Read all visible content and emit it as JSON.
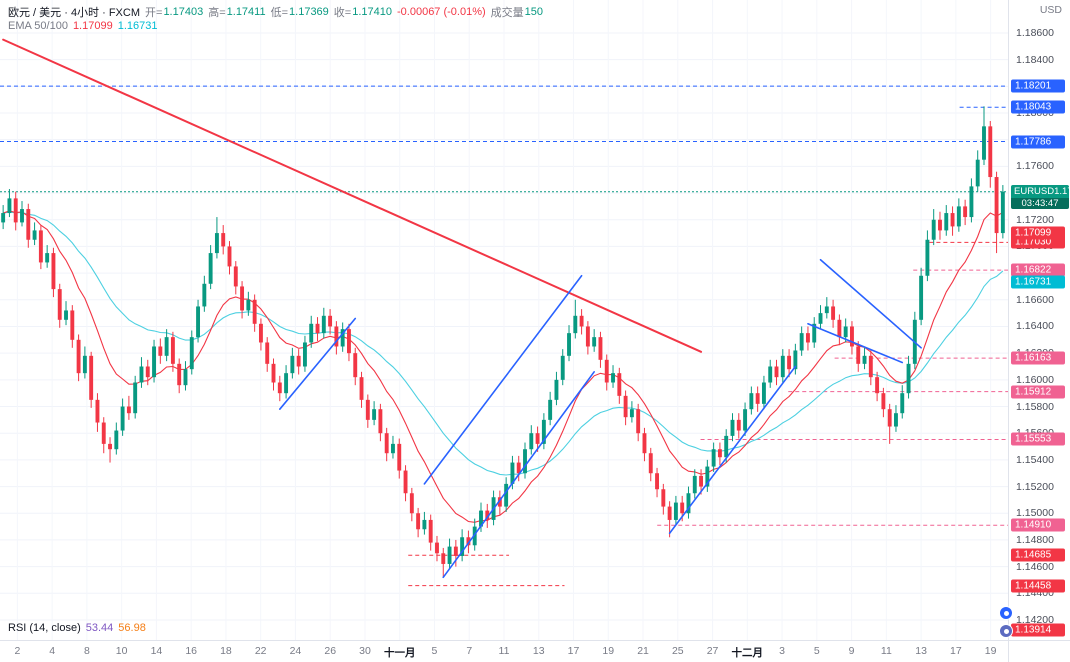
{
  "header": {
    "symbol_title": "欧元 / 美元 · 4小时 · FXCM",
    "ohlc": {
      "o_label": "开=",
      "open": "1.17403",
      "h_label": "高=",
      "high": "1.17411",
      "l_label": "低=",
      "low": "1.17369",
      "c_label": "收=",
      "close": "1.17410",
      "change": "-0.00067 (-0.01%)",
      "volume_label": "成交量",
      "volume": "150"
    },
    "ema_label": "EMA 50/100",
    "ema50": "1.17099",
    "ema100": "1.16731"
  },
  "rsi": {
    "label": "RSI (14, close)",
    "value1": "53.44",
    "value2": "56.98"
  },
  "axis": {
    "currency": "USD",
    "y_ticks": [
      "1.18600",
      "1.18400",
      "1.18200",
      "1.18000",
      "1.17800",
      "1.17600",
      "1.17400",
      "1.17200",
      "1.17000",
      "1.16800",
      "1.16600",
      "1.16400",
      "1.16200",
      "1.16000",
      "1.15800",
      "1.15600",
      "1.15400",
      "1.15200",
      "1.15000",
      "1.14800",
      "1.14600",
      "1.14400",
      "1.14200"
    ],
    "x_labels": [
      "2",
      "4",
      "8",
      "10",
      "14",
      "16",
      "18",
      "22",
      "24",
      "26",
      "30",
      "十一月",
      "5",
      "7",
      "11",
      "13",
      "17",
      "19",
      "21",
      "25",
      "27",
      "十二月",
      "3",
      "5",
      "9",
      "11",
      "13",
      "17",
      "19"
    ],
    "x_month_indices": [
      11,
      21
    ]
  },
  "chart_data": {
    "type": "candlestick",
    "symbol": "EURUSD",
    "timeframe": "4h",
    "title": "欧元 / 美元 · 4小时 · FXCM",
    "ylim": [
      1.1405,
      1.18847
    ],
    "grid": true,
    "up_color": "#089981",
    "down_color": "#f23645",
    "ema_periods": [
      50,
      100
    ],
    "render_periods": [
      12,
      30
    ],
    "ema_colors": [
      "#f23645",
      "#4dd0e1"
    ],
    "last_price": {
      "symbol": "EURUSD",
      "price": 1.1741,
      "price_text": "1.17410",
      "countdown": "03:43:47",
      "color": "#089981"
    },
    "value_badges": [
      {
        "price": 1.17099,
        "text": "1.17099",
        "bg": "#f23645"
      },
      {
        "price": 1.16731,
        "text": "1.16731",
        "bg": "#00bcd4"
      }
    ],
    "levels": [
      {
        "price": 1.18201,
        "text": "1.18201",
        "color": "#2962ff",
        "bg": "#2962ff",
        "dash": "4 3",
        "from": 0
      },
      {
        "price": 1.18043,
        "text": "1.18043",
        "color": "#2962ff",
        "bg": "#2962ff",
        "dash": "4 3",
        "from": 0.952
      },
      {
        "price": 1.17786,
        "text": "1.17786",
        "color": "#2962ff",
        "bg": "#2962ff",
        "dash": "4 3",
        "from": 0
      },
      {
        "price": 1.1703,
        "text": "1.17030",
        "color": "#f23645",
        "bg": "#f23645",
        "dash": "4 3",
        "from": 0.922
      },
      {
        "price": 1.16822,
        "text": "1.16822",
        "color": "#f06292",
        "bg": "#f06292",
        "dash": "4 3",
        "from": 0.906
      },
      {
        "price": 1.16163,
        "text": "1.16163",
        "color": "#f06292",
        "bg": "#f06292",
        "dash": "4 3",
        "from": 0.828
      },
      {
        "price": 1.15912,
        "text": "1.15912",
        "color": "#f06292",
        "bg": "#f06292",
        "dash": "4 3",
        "from": 0.782
      },
      {
        "price": 1.15553,
        "text": "1.15553",
        "color": "#f06292",
        "bg": "#f06292",
        "dash": "4 3",
        "from": 0.695
      },
      {
        "price": 1.1491,
        "text": "1.14910",
        "color": "#f06292",
        "bg": "#f06292",
        "dash": "4 3",
        "from": 0.652
      },
      {
        "price": 1.14685,
        "text": "1.14685",
        "color": "#f23645",
        "bg": "#f23645",
        "dash": "4 3",
        "from": 0.405,
        "to": 0.505
      },
      {
        "price": 1.14458,
        "text": "1.14458",
        "color": "#f23645",
        "bg": "#f23645",
        "dash": "4 3",
        "from": 0.405,
        "to": 0.56
      },
      {
        "price": 1.13914,
        "text": "1.13914",
        "color": "#f23645",
        "bg": "#f23645",
        "line": false
      }
    ],
    "trendlines": [
      {
        "color": "#f23645",
        "width": 2,
        "points": [
          [
            0,
            1.1855
          ],
          [
            111,
            1.1621
          ]
        ]
      },
      {
        "color": "#2962ff",
        "width": 1.6,
        "points": [
          [
            44,
            1.1578
          ],
          [
            56,
            1.1646
          ]
        ]
      },
      {
        "color": "#2962ff",
        "width": 1.6,
        "points": [
          [
            67,
            1.1522
          ],
          [
            92,
            1.1678
          ]
        ]
      },
      {
        "color": "#2962ff",
        "width": 1.6,
        "points": [
          [
            70,
            1.1452
          ],
          [
            94,
            1.1606
          ]
        ]
      },
      {
        "color": "#2962ff",
        "width": 1.6,
        "points": [
          [
            106,
            1.1485
          ],
          [
            126,
            1.161
          ]
        ]
      },
      {
        "color": "#2962ff",
        "width": 1.6,
        "points": [
          [
            130,
            1.169
          ],
          [
            146,
            1.1624
          ]
        ]
      },
      {
        "color": "#2962ff",
        "width": 1.6,
        "points": [
          [
            128,
            1.1642
          ],
          [
            143,
            1.1613
          ]
        ]
      }
    ],
    "candles": [
      [
        1.1718,
        1.1731,
        1.1713,
        1.1725
      ],
      [
        1.1725,
        1.1743,
        1.1722,
        1.1736
      ],
      [
        1.1736,
        1.1741,
        1.1712,
        1.1718
      ],
      [
        1.1718,
        1.1734,
        1.1715,
        1.1728
      ],
      [
        1.1728,
        1.1732,
        1.1699,
        1.1705
      ],
      [
        1.1705,
        1.1718,
        1.1701,
        1.1712
      ],
      [
        1.1712,
        1.1716,
        1.1683,
        1.1688
      ],
      [
        1.1688,
        1.1701,
        1.1684,
        1.1695
      ],
      [
        1.1695,
        1.1699,
        1.1662,
        1.1668
      ],
      [
        1.1668,
        1.1672,
        1.1639,
        1.1645
      ],
      [
        1.1645,
        1.1659,
        1.1641,
        1.1652
      ],
      [
        1.1652,
        1.1656,
        1.1624,
        1.163
      ],
      [
        1.163,
        1.1634,
        1.1599,
        1.1605
      ],
      [
        1.1605,
        1.1625,
        1.1601,
        1.1618
      ],
      [
        1.1618,
        1.1621,
        1.1579,
        1.1585
      ],
      [
        1.1585,
        1.159,
        1.1561,
        1.1568
      ],
      [
        1.1568,
        1.1572,
        1.1545,
        1.1552
      ],
      [
        1.1552,
        1.1557,
        1.1538,
        1.1548
      ],
      [
        1.1548,
        1.1568,
        1.1544,
        1.1562
      ],
      [
        1.1562,
        1.1586,
        1.1558,
        1.158
      ],
      [
        1.158,
        1.1588,
        1.157,
        1.1575
      ],
      [
        1.1575,
        1.1603,
        1.1571,
        1.1598
      ],
      [
        1.1598,
        1.1617,
        1.1594,
        1.161
      ],
      [
        1.161,
        1.1615,
        1.1596,
        1.1602
      ],
      [
        1.1602,
        1.163,
        1.1598,
        1.1625
      ],
      [
        1.1625,
        1.1631,
        1.1612,
        1.1618
      ],
      [
        1.1618,
        1.1638,
        1.1614,
        1.1632
      ],
      [
        1.1632,
        1.1636,
        1.1606,
        1.1612
      ],
      [
        1.1612,
        1.1616,
        1.159,
        1.1596
      ],
      [
        1.1596,
        1.1614,
        1.1592,
        1.1608
      ],
      [
        1.1608,
        1.1637,
        1.1604,
        1.1632
      ],
      [
        1.1632,
        1.166,
        1.1628,
        1.1655
      ],
      [
        1.1655,
        1.1678,
        1.1651,
        1.1672
      ],
      [
        1.1672,
        1.1701,
        1.1668,
        1.1695
      ],
      [
        1.1695,
        1.1722,
        1.1691,
        1.171
      ],
      [
        1.171,
        1.1716,
        1.1694,
        1.17
      ],
      [
        1.17,
        1.1704,
        1.1679,
        1.1685
      ],
      [
        1.1685,
        1.1689,
        1.1664,
        1.167
      ],
      [
        1.167,
        1.1674,
        1.1646,
        1.1652
      ],
      [
        1.1652,
        1.1666,
        1.1648,
        1.166
      ],
      [
        1.166,
        1.1664,
        1.1636,
        1.1642
      ],
      [
        1.1642,
        1.1646,
        1.1622,
        1.1628
      ],
      [
        1.1628,
        1.1632,
        1.1606,
        1.1612
      ],
      [
        1.1612,
        1.1616,
        1.1592,
        1.1598
      ],
      [
        1.1598,
        1.1603,
        1.1584,
        1.159
      ],
      [
        1.159,
        1.1611,
        1.1586,
        1.1605
      ],
      [
        1.1605,
        1.1624,
        1.1601,
        1.1618
      ],
      [
        1.1618,
        1.1623,
        1.1604,
        1.161
      ],
      [
        1.161,
        1.1633,
        1.1606,
        1.1628
      ],
      [
        1.1628,
        1.1648,
        1.1624,
        1.1642
      ],
      [
        1.1642,
        1.1647,
        1.1629,
        1.1635
      ],
      [
        1.1635,
        1.1654,
        1.1631,
        1.1648
      ],
      [
        1.1648,
        1.1653,
        1.1634,
        1.164
      ],
      [
        1.164,
        1.1644,
        1.1619,
        1.1625
      ],
      [
        1.1625,
        1.1643,
        1.1621,
        1.1638
      ],
      [
        1.1638,
        1.1642,
        1.1614,
        1.162
      ],
      [
        1.162,
        1.1624,
        1.1596,
        1.1602
      ],
      [
        1.1602,
        1.1606,
        1.1579,
        1.1585
      ],
      [
        1.1585,
        1.1589,
        1.1564,
        1.157
      ],
      [
        1.157,
        1.1584,
        1.1566,
        1.1578
      ],
      [
        1.1578,
        1.1582,
        1.1554,
        1.156
      ],
      [
        1.156,
        1.1564,
        1.1539,
        1.1545
      ],
      [
        1.1545,
        1.1558,
        1.1541,
        1.1552
      ],
      [
        1.1552,
        1.1556,
        1.1526,
        1.1532
      ],
      [
        1.1532,
        1.1536,
        1.1509,
        1.1515
      ],
      [
        1.1515,
        1.1519,
        1.1494,
        1.15
      ],
      [
        1.15,
        1.1504,
        1.1482,
        1.1488
      ],
      [
        1.1488,
        1.1501,
        1.1484,
        1.1495
      ],
      [
        1.1495,
        1.1499,
        1.1472,
        1.1478
      ],
      [
        1.1478,
        1.1483,
        1.1464,
        1.147
      ],
      [
        1.147,
        1.1474,
        1.1452,
        1.1462
      ],
      [
        1.1462,
        1.1481,
        1.1458,
        1.1475
      ],
      [
        1.1475,
        1.148,
        1.146,
        1.1468
      ],
      [
        1.1468,
        1.1488,
        1.1464,
        1.1482
      ],
      [
        1.1482,
        1.1487,
        1.147,
        1.1476
      ],
      [
        1.1476,
        1.1496,
        1.1472,
        1.149
      ],
      [
        1.149,
        1.1508,
        1.1486,
        1.1502
      ],
      [
        1.1502,
        1.1507,
        1.1489,
        1.1495
      ],
      [
        1.1495,
        1.1517,
        1.1491,
        1.1512
      ],
      [
        1.1512,
        1.1517,
        1.1499,
        1.1505
      ],
      [
        1.1505,
        1.1527,
        1.1501,
        1.1522
      ],
      [
        1.1522,
        1.1543,
        1.1518,
        1.1538
      ],
      [
        1.1538,
        1.1543,
        1.1524,
        1.153
      ],
      [
        1.153,
        1.1553,
        1.1526,
        1.1548
      ],
      [
        1.1548,
        1.1566,
        1.1544,
        1.156
      ],
      [
        1.156,
        1.1565,
        1.1546,
        1.1552
      ],
      [
        1.1552,
        1.1575,
        1.1548,
        1.157
      ],
      [
        1.157,
        1.1591,
        1.1566,
        1.1585
      ],
      [
        1.1585,
        1.1606,
        1.1581,
        1.16
      ],
      [
        1.16,
        1.1623,
        1.1596,
        1.1618
      ],
      [
        1.1618,
        1.1641,
        1.1614,
        1.1635
      ],
      [
        1.1635,
        1.166,
        1.1631,
        1.1648
      ],
      [
        1.1648,
        1.1653,
        1.1634,
        1.164
      ],
      [
        1.164,
        1.1644,
        1.1619,
        1.1625
      ],
      [
        1.1625,
        1.1638,
        1.1621,
        1.1632
      ],
      [
        1.1632,
        1.1636,
        1.1609,
        1.1615
      ],
      [
        1.1615,
        1.1619,
        1.1592,
        1.1598
      ],
      [
        1.1598,
        1.1611,
        1.1594,
        1.1605
      ],
      [
        1.1605,
        1.1609,
        1.1582,
        1.1588
      ],
      [
        1.1588,
        1.1592,
        1.1566,
        1.1572
      ],
      [
        1.1572,
        1.1584,
        1.1568,
        1.1578
      ],
      [
        1.1578,
        1.1582,
        1.1554,
        1.156
      ],
      [
        1.156,
        1.1564,
        1.1539,
        1.1545
      ],
      [
        1.1545,
        1.1549,
        1.1524,
        1.153
      ],
      [
        1.153,
        1.1534,
        1.1512,
        1.1518
      ],
      [
        1.1518,
        1.1522,
        1.1499,
        1.1505
      ],
      [
        1.1505,
        1.1509,
        1.1482,
        1.1495
      ],
      [
        1.1495,
        1.1513,
        1.1491,
        1.1508
      ],
      [
        1.1508,
        1.1513,
        1.1494,
        1.15
      ],
      [
        1.15,
        1.152,
        1.1496,
        1.1515
      ],
      [
        1.1515,
        1.1533,
        1.1511,
        1.1528
      ],
      [
        1.1528,
        1.1533,
        1.1514,
        1.152
      ],
      [
        1.152,
        1.154,
        1.1516,
        1.1535
      ],
      [
        1.1535,
        1.1553,
        1.1531,
        1.1548
      ],
      [
        1.1548,
        1.1553,
        1.1536,
        1.1542
      ],
      [
        1.1542,
        1.1563,
        1.1538,
        1.1558
      ],
      [
        1.1558,
        1.1575,
        1.1554,
        1.157
      ],
      [
        1.157,
        1.1575,
        1.1556,
        1.1562
      ],
      [
        1.1562,
        1.1583,
        1.1558,
        1.1578
      ],
      [
        1.1578,
        1.1595,
        1.1574,
        1.159
      ],
      [
        1.159,
        1.1595,
        1.1576,
        1.1582
      ],
      [
        1.1582,
        1.1603,
        1.1578,
        1.1598
      ],
      [
        1.1598,
        1.1615,
        1.1594,
        1.161
      ],
      [
        1.161,
        1.1615,
        1.1596,
        1.1602
      ],
      [
        1.1602,
        1.1623,
        1.1598,
        1.1618
      ],
      [
        1.1618,
        1.1623,
        1.1602,
        1.1608
      ],
      [
        1.1608,
        1.1627,
        1.1604,
        1.1622
      ],
      [
        1.1622,
        1.164,
        1.1618,
        1.1635
      ],
      [
        1.1635,
        1.164,
        1.1622,
        1.1628
      ],
      [
        1.1628,
        1.1647,
        1.1624,
        1.1642
      ],
      [
        1.1642,
        1.1656,
        1.1638,
        1.165
      ],
      [
        1.165,
        1.1662,
        1.1646,
        1.1655
      ],
      [
        1.1655,
        1.166,
        1.1639,
        1.1645
      ],
      [
        1.1645,
        1.1649,
        1.1626,
        1.1632
      ],
      [
        1.1632,
        1.1646,
        1.1628,
        1.164
      ],
      [
        1.164,
        1.1644,
        1.1619,
        1.1625
      ],
      [
        1.1625,
        1.1629,
        1.1606,
        1.1612
      ],
      [
        1.1612,
        1.1624,
        1.1608,
        1.1618
      ],
      [
        1.1618,
        1.1622,
        1.1596,
        1.1602
      ],
      [
        1.1602,
        1.1606,
        1.1584,
        1.159
      ],
      [
        1.159,
        1.1594,
        1.1572,
        1.1578
      ],
      [
        1.1578,
        1.1582,
        1.1552,
        1.1565
      ],
      [
        1.1565,
        1.1581,
        1.1561,
        1.1575
      ],
      [
        1.1575,
        1.1596,
        1.1571,
        1.159
      ],
      [
        1.159,
        1.1618,
        1.1586,
        1.1612
      ],
      [
        1.1612,
        1.1651,
        1.1608,
        1.1645
      ],
      [
        1.1645,
        1.1684,
        1.1641,
        1.1678
      ],
      [
        1.1678,
        1.1712,
        1.1674,
        1.1705
      ],
      [
        1.1705,
        1.1728,
        1.1701,
        1.172
      ],
      [
        1.172,
        1.1726,
        1.1705,
        1.1712
      ],
      [
        1.1712,
        1.1731,
        1.1708,
        1.1725
      ],
      [
        1.1725,
        1.173,
        1.1708,
        1.1715
      ],
      [
        1.1715,
        1.1736,
        1.1711,
        1.173
      ],
      [
        1.173,
        1.1735,
        1.1716,
        1.1722
      ],
      [
        1.1722,
        1.1751,
        1.1718,
        1.1745
      ],
      [
        1.1745,
        1.1772,
        1.1741,
        1.1765
      ],
      [
        1.1765,
        1.1805,
        1.1761,
        1.179
      ],
      [
        1.179,
        1.1794,
        1.1744,
        1.1752
      ],
      [
        1.1752,
        1.1756,
        1.1695,
        1.171
      ],
      [
        1.171,
        1.1746,
        1.1706,
        1.1741
      ]
    ]
  }
}
